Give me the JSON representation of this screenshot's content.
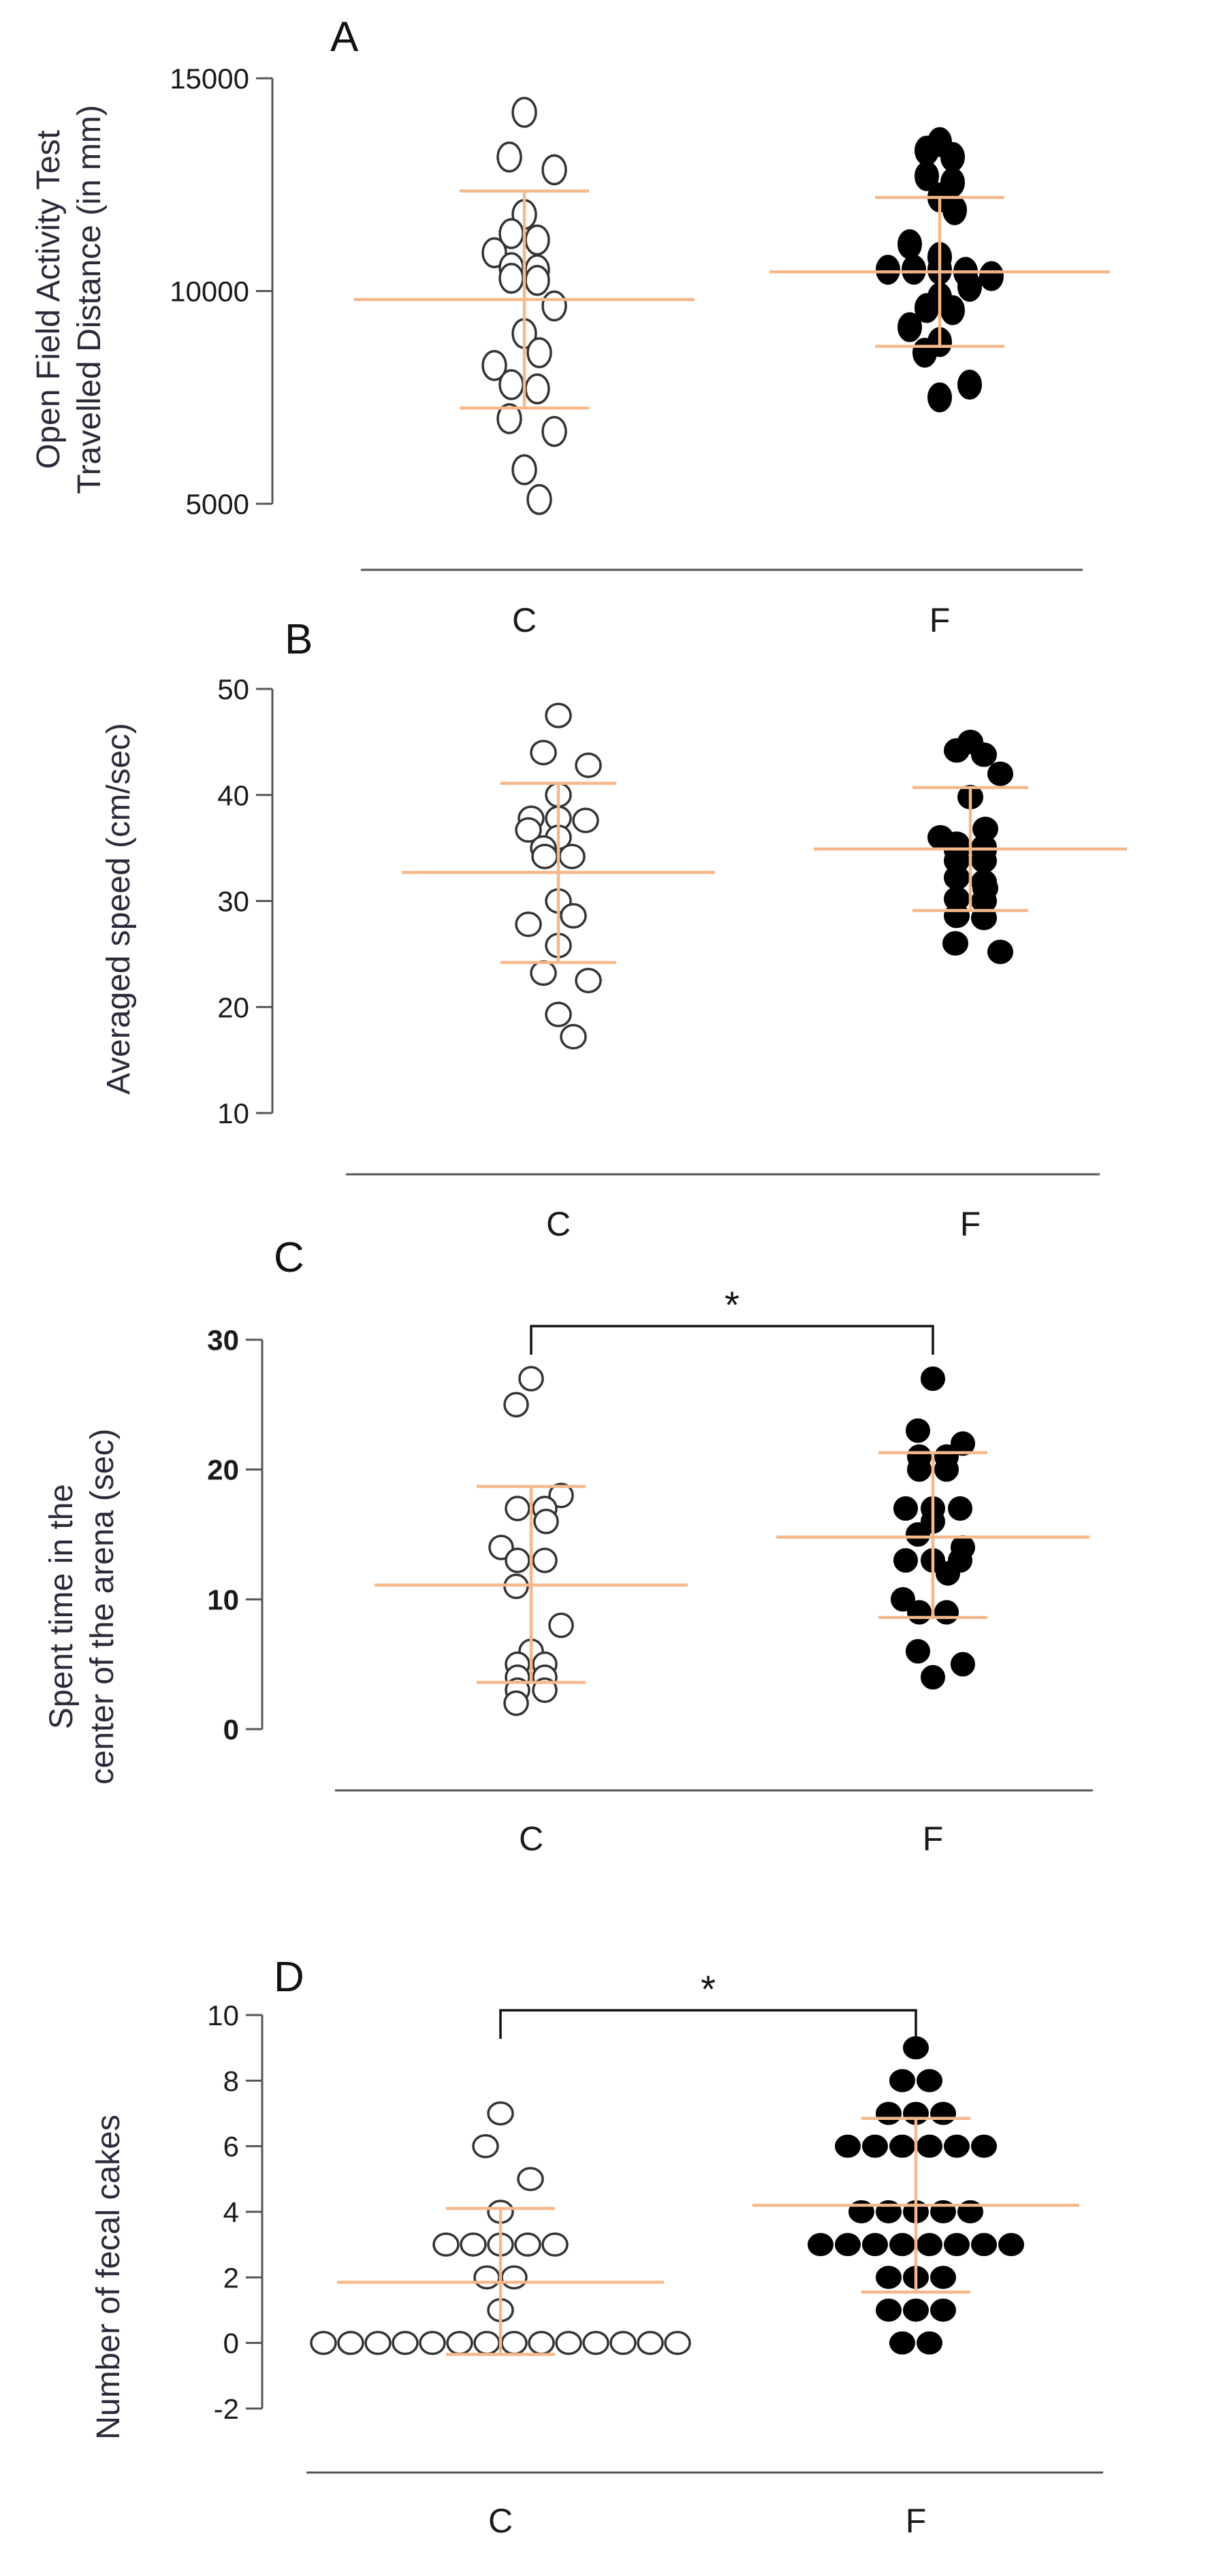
{
  "chart_data": [
    {
      "panel": "A",
      "type": "scatter",
      "ylabel_lines": [
        "Open Field Activity Test",
        "Travelled Distance (in mm)"
      ],
      "yticks": [
        5000,
        10000,
        15000
      ],
      "ylim": [
        5000,
        15000
      ],
      "categories": [
        "C",
        "F"
      ],
      "significance": null,
      "series": [
        {
          "name": "C",
          "style": "open",
          "mean": 9800,
          "sd_low": 7250,
          "sd_high": 12350,
          "values": [
            14200,
            13150,
            12850,
            11800,
            11350,
            11200,
            10900,
            10500,
            10550,
            10300,
            10250,
            9650,
            9000,
            8550,
            8250,
            7800,
            7700,
            7000,
            6700,
            5800,
            5100
          ]
        },
        {
          "name": "F",
          "style": "filled",
          "mean": 10450,
          "sd_low": 8700,
          "sd_high": 12200,
          "values": [
            13500,
            13300,
            13150,
            12700,
            12550,
            12200,
            11900,
            11100,
            10800,
            10500,
            10500,
            10450,
            10500,
            10350,
            10100,
            9850,
            9600,
            9550,
            9150,
            8800,
            8550,
            7800,
            7500
          ]
        }
      ]
    },
    {
      "panel": "B",
      "type": "scatter",
      "ylabel_lines": [
        "Averaged speed (cm/sec)"
      ],
      "yticks": [
        10,
        20,
        30,
        40,
        50
      ],
      "ylim": [
        10,
        50
      ],
      "categories": [
        "C",
        "F"
      ],
      "significance": null,
      "series": [
        {
          "name": "C",
          "style": "open",
          "mean": 32.7,
          "sd_low": 24.2,
          "sd_high": 41.1,
          "values": [
            47.5,
            44.0,
            42.8,
            40.0,
            37.8,
            37.6,
            37.8,
            36.7,
            36.0,
            35.0,
            34.2,
            34.2,
            30.0,
            28.6,
            27.8,
            25.8,
            23.2,
            22.5,
            19.3,
            17.2
          ]
        },
        {
          "name": "F",
          "style": "filled",
          "mean": 34.9,
          "sd_low": 29.1,
          "sd_high": 40.7,
          "values": [
            45.0,
            44.2,
            43.8,
            42.0,
            39.8,
            36.8,
            36.0,
            35.4,
            35.1,
            34.8,
            34.8,
            33.8,
            33.8,
            32.2,
            31.8,
            31.2,
            30.0,
            30.2,
            28.6,
            28.4,
            26.0,
            25.2
          ]
        }
      ]
    },
    {
      "panel": "C",
      "type": "scatter",
      "ylabel_lines": [
        "Spent time in the",
        "center of the arena (sec)"
      ],
      "yticks": [
        0,
        10,
        20,
        30
      ],
      "ylim": [
        0,
        30
      ],
      "categories": [
        "C",
        "F"
      ],
      "significance": "*",
      "series": [
        {
          "name": "C",
          "style": "open",
          "mean": 11.1,
          "sd_low": 3.6,
          "sd_high": 18.7,
          "values": [
            27,
            25,
            18,
            17,
            17,
            16,
            14,
            13,
            13,
            11,
            8,
            6,
            5,
            5,
            4,
            4,
            3,
            3,
            2
          ]
        },
        {
          "name": "F",
          "style": "filled",
          "mean": 14.8,
          "sd_low": 8.6,
          "sd_high": 21.3,
          "values": [
            27,
            23,
            22,
            21,
            21,
            20,
            20,
            17,
            17,
            17,
            16,
            15,
            14,
            13,
            13,
            13,
            12,
            10,
            9,
            9,
            6,
            5,
            4
          ]
        }
      ]
    },
    {
      "panel": "D",
      "type": "scatter",
      "ylabel_lines": [
        "Number of fecal cakes"
      ],
      "yticks": [
        -2,
        0,
        2,
        4,
        6,
        8,
        10
      ],
      "ylim": [
        -2,
        10
      ],
      "categories": [
        "C",
        "F"
      ],
      "significance": "*",
      "series": [
        {
          "name": "C",
          "style": "open",
          "mean": 1.85,
          "sd_low": -0.35,
          "sd_high": 4.1,
          "values": [
            7,
            6,
            5,
            4,
            3,
            3,
            3,
            3,
            3,
            2,
            2,
            1,
            0,
            0,
            0,
            0,
            0,
            0,
            0,
            0,
            0,
            0,
            0,
            0,
            0,
            0
          ]
        },
        {
          "name": "F",
          "style": "filled",
          "mean": 4.2,
          "sd_low": 1.55,
          "sd_high": 6.85,
          "values": [
            9,
            8,
            8,
            7,
            7,
            7,
            6,
            6,
            6,
            6,
            6,
            6,
            4,
            4,
            4,
            4,
            4,
            3,
            3,
            3,
            3,
            3,
            3,
            3,
            3,
            2,
            2,
            2,
            1,
            1,
            1,
            0,
            0
          ]
        }
      ]
    }
  ]
}
